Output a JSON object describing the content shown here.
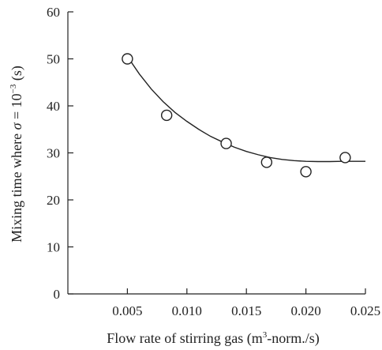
{
  "chart_data": {
    "type": "scatter",
    "xlabel_main": "Flow rate of stirring gas (m",
    "xlabel_sup": "3",
    "xlabel_tail": "-norm./s)",
    "ylabel_main": "Mixing time where ",
    "ylabel_sigma": "σ",
    "ylabel_eq": " = 10",
    "ylabel_exp": "−3",
    "ylabel_tail": " (s)",
    "xlim": [
      0,
      0.025
    ],
    "ylim": [
      0,
      60
    ],
    "xticks": [
      0.005,
      0.01,
      0.015,
      0.02,
      0.025
    ],
    "xtick_labels": [
      "0.005",
      "0.010",
      "0.015",
      "0.020",
      "0.025"
    ],
    "yticks": [
      0,
      10,
      20,
      30,
      40,
      50,
      60
    ],
    "ytick_labels": [
      "0",
      "10",
      "20",
      "30",
      "40",
      "50",
      "60"
    ],
    "series": [
      {
        "marker": "open-circle",
        "x": [
          0.005,
          0.0083,
          0.0133,
          0.0167,
          0.02,
          0.0233
        ],
        "y": [
          50,
          38,
          32,
          28,
          26,
          29
        ]
      }
    ],
    "fit_curve": {
      "x": [
        0.005,
        0.006,
        0.007,
        0.008,
        0.009,
        0.01,
        0.011,
        0.012,
        0.013,
        0.014,
        0.015,
        0.016,
        0.017,
        0.018,
        0.019,
        0.02,
        0.021,
        0.022,
        0.023,
        0.024,
        0.025
      ],
      "y": [
        50.5,
        46.8,
        43.6,
        40.9,
        38.6,
        36.7,
        35.0,
        33.5,
        32.3,
        31.2,
        30.3,
        29.6,
        29.0,
        28.6,
        28.35,
        28.2,
        28.15,
        28.15,
        28.2,
        28.2,
        28.2
      ]
    },
    "grid": false,
    "legend": "none"
  }
}
